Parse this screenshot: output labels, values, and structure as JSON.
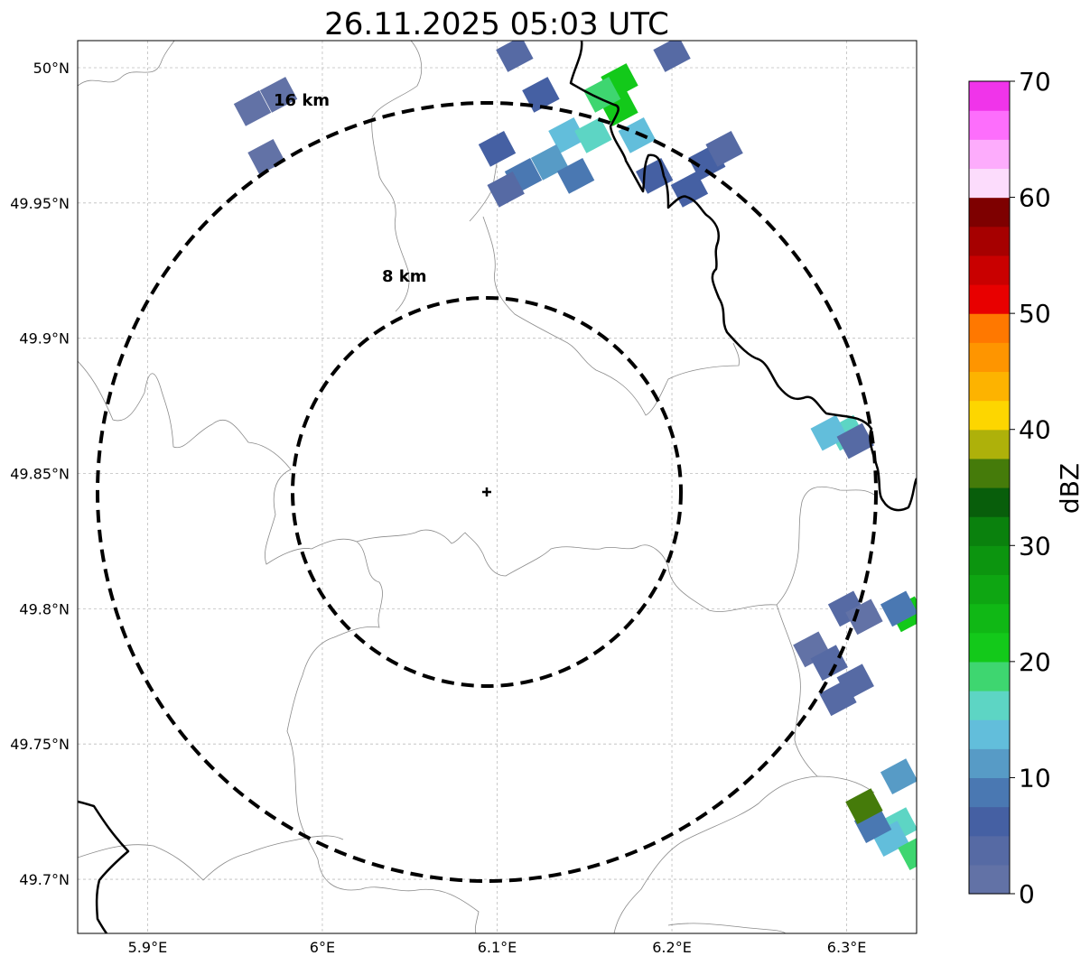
{
  "title": "26.11.2025 05:03 UTC",
  "map": {
    "lon_range": [
      5.86,
      6.34
    ],
    "lat_range": [
      49.68,
      50.01
    ],
    "x_ticks": [
      {
        "value": 5.9,
        "label": "5.9°E"
      },
      {
        "value": 6.0,
        "label": "6°E"
      },
      {
        "value": 6.1,
        "label": "6.1°E"
      },
      {
        "value": 6.2,
        "label": "6.2°E"
      },
      {
        "value": 6.3,
        "label": "6.3°E"
      }
    ],
    "y_ticks": [
      {
        "value": 50.0,
        "label": "50°N"
      },
      {
        "value": 49.95,
        "label": "49.95°N"
      },
      {
        "value": 49.9,
        "label": "49.9°N"
      },
      {
        "value": 49.85,
        "label": "49.85°N"
      },
      {
        "value": 49.8,
        "label": "49.8°N"
      },
      {
        "value": 49.75,
        "label": "49.75°N"
      },
      {
        "value": 49.7,
        "label": "49.7°N"
      }
    ],
    "grid": "dashed",
    "center": {
      "lon": 6.095,
      "lat": 49.843
    },
    "rings": [
      {
        "radius_km": 8,
        "label": "8 km"
      },
      {
        "radius_km": 16,
        "label": "16 km"
      }
    ]
  },
  "colorbar": {
    "label": "dBZ",
    "ticks": [
      {
        "value": 0,
        "label": "0"
      },
      {
        "value": 10,
        "label": "10"
      },
      {
        "value": 20,
        "label": "20"
      },
      {
        "value": 30,
        "label": "30"
      },
      {
        "value": 40,
        "label": "40"
      },
      {
        "value": 50,
        "label": "50"
      },
      {
        "value": 60,
        "label": "60"
      },
      {
        "value": 70,
        "label": "70"
      }
    ],
    "colors": [
      "#6272a6",
      "#566aa4",
      "#4560a3",
      "#4a78b2",
      "#579bc6",
      "#62bedb",
      "#5dd5c4",
      "#3ed670",
      "#13c91a",
      "#10b815",
      "#0ea612",
      "#0c950f",
      "#0a810d",
      "#085e0b",
      "#457b0a",
      "#aeb10a",
      "#fdd600",
      "#fdb300",
      "#fe9500",
      "#ff7800",
      "#e80000",
      "#c90000",
      "#a60000",
      "#7e0000",
      "#fcdcfc",
      "#fdacfc",
      "#fd6efc",
      "#f034ea"
    ]
  },
  "echoes": [
    {
      "lon": 6.17,
      "lat": 49.995,
      "dbz": 22
    },
    {
      "lon": 6.17,
      "lat": 49.985,
      "dbz": 21
    },
    {
      "lon": 6.16,
      "lat": 49.99,
      "dbz": 19
    },
    {
      "lon": 6.14,
      "lat": 49.975,
      "dbz": 14
    },
    {
      "lon": 6.155,
      "lat": 49.975,
      "dbz": 16
    },
    {
      "lon": 6.18,
      "lat": 49.975,
      "dbz": 13
    },
    {
      "lon": 6.125,
      "lat": 49.99,
      "dbz": 6
    },
    {
      "lon": 6.13,
      "lat": 49.965,
      "dbz": 12
    },
    {
      "lon": 6.115,
      "lat": 49.96,
      "dbz": 9
    },
    {
      "lon": 6.145,
      "lat": 49.96,
      "dbz": 8
    },
    {
      "lon": 6.1,
      "lat": 49.97,
      "dbz": 5
    },
    {
      "lon": 6.105,
      "lat": 49.955,
      "dbz": 4
    },
    {
      "lon": 6.19,
      "lat": 49.96,
      "dbz": 5
    },
    {
      "lon": 6.22,
      "lat": 49.965,
      "dbz": 7
    },
    {
      "lon": 6.23,
      "lat": 49.97,
      "dbz": 4
    },
    {
      "lon": 6.21,
      "lat": 49.955,
      "dbz": 6
    },
    {
      "lon": 6.11,
      "lat": 50.005,
      "dbz": 3
    },
    {
      "lon": 6.2,
      "lat": 50.005,
      "dbz": 3
    },
    {
      "lon": 5.975,
      "lat": 49.99,
      "dbz": 2
    },
    {
      "lon": 5.96,
      "lat": 49.985,
      "dbz": 2
    },
    {
      "lon": 5.968,
      "lat": 49.967,
      "dbz": 2
    },
    {
      "lon": 6.3,
      "lat": 49.865,
      "dbz": 15
    },
    {
      "lon": 6.29,
      "lat": 49.865,
      "dbz": 13
    },
    {
      "lon": 6.305,
      "lat": 49.862,
      "dbz": 4
    },
    {
      "lon": 6.3,
      "lat": 49.8,
      "dbz": 3
    },
    {
      "lon": 6.31,
      "lat": 49.797,
      "dbz": 2
    },
    {
      "lon": 6.28,
      "lat": 49.785,
      "dbz": 2
    },
    {
      "lon": 6.29,
      "lat": 49.78,
      "dbz": 3
    },
    {
      "lon": 6.305,
      "lat": 49.773,
      "dbz": 4
    },
    {
      "lon": 6.295,
      "lat": 49.767,
      "dbz": 4
    },
    {
      "lon": 6.335,
      "lat": 49.798,
      "dbz": 20
    },
    {
      "lon": 6.33,
      "lat": 49.8,
      "dbz": 9
    },
    {
      "lon": 6.33,
      "lat": 49.738,
      "dbz": 10
    },
    {
      "lon": 6.33,
      "lat": 49.72,
      "dbz": 17
    },
    {
      "lon": 6.325,
      "lat": 49.715,
      "dbz": 13
    },
    {
      "lon": 6.315,
      "lat": 49.72,
      "dbz": 9
    },
    {
      "lon": 6.34,
      "lat": 49.71,
      "dbz": 18
    },
    {
      "lon": 6.31,
      "lat": 49.727,
      "dbz": 35
    }
  ]
}
